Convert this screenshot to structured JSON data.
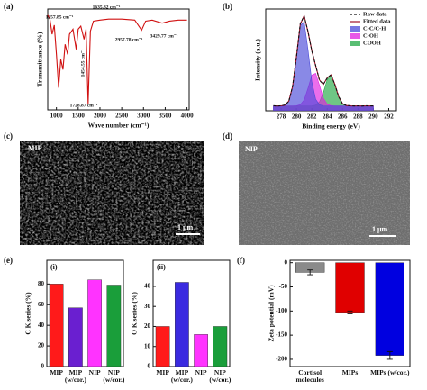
{
  "panel_labels": [
    "(a)",
    "(b)",
    "(c)",
    "(d)",
    "(e)",
    "(f)"
  ],
  "images": [
    {
      "label": "MIP",
      "scale": "1 μm"
    },
    {
      "label": "NIP",
      "scale": "1 μm"
    }
  ],
  "chart_data": [
    {
      "type": "line",
      "x_label": "Wave number (cm⁻¹)",
      "y_label": "Transmittance (%)",
      "x": [
        800,
        850,
        900,
        950,
        1000,
        1050,
        1100,
        1150,
        1200,
        1257,
        1300,
        1380,
        1454,
        1500,
        1560,
        1635,
        1680,
        1728,
        1780,
        1850,
        2000,
        2200,
        2500,
        2800,
        2957,
        3050,
        3200,
        3429,
        3600,
        3800,
        4000
      ],
      "series": [
        {
          "color": "#d01010",
          "values": [
            94,
            90,
            75,
            84,
            55,
            22,
            50,
            40,
            65,
            55,
            75,
            80,
            60,
            80,
            83,
            70,
            80,
            6,
            78,
            88,
            89,
            90,
            90,
            89,
            79,
            88,
            89,
            86,
            88,
            89,
            89
          ]
        }
      ],
      "xlim": [
        800,
        4050
      ],
      "xticks": [
        1000,
        1500,
        2000,
        2500,
        3000,
        3500,
        4000
      ],
      "ylim": [
        0,
        100
      ],
      "annotations": [
        "1257.85 cm⁻¹",
        "1635.82 cm⁻¹",
        "1454.55 cm⁻¹",
        "1728.87 cm⁻¹",
        "2957.78 cm⁻¹",
        "3429.77 cm⁻¹"
      ]
    },
    {
      "type": "line",
      "x_label": "Binding energy (eV)",
      "y_label": "Intensity (a.u.)",
      "x": [
        277,
        277.5,
        278,
        278.5,
        279,
        279.5,
        280,
        280.5,
        281,
        281.5,
        282,
        282.5,
        283,
        283.5,
        284,
        284.5,
        285,
        285.5,
        286,
        286.5,
        287,
        287.5,
        288,
        288.5,
        289,
        289.5,
        290
      ],
      "series": [
        {
          "name": "Raw data",
          "color": "#111111",
          "dashed": true,
          "values": [
            5.3,
            4.8,
            5.2,
            6.0,
            9.6,
            25.5,
            55.4,
            90.1,
            97.6,
            82.0,
            61.5,
            46.8,
            31.2,
            27.5,
            33.6,
            37.4,
            26.8,
            14.7,
            7.0,
            5.6,
            5.2,
            4.9,
            5.1,
            4.8,
            5.2,
            5.0,
            5.1
          ]
        },
        {
          "name": "Fitted data",
          "color": "#a0102a",
          "values": [
            5,
            5,
            5.1,
            5.8,
            10,
            25.1,
            56.1,
            89.4,
            98.1,
            81.4,
            62.0,
            46.3,
            31.7,
            27.1,
            34.0,
            37.0,
            27.2,
            14.3,
            7.3,
            5.4,
            5,
            5,
            5,
            5,
            5,
            5,
            5
          ]
        },
        {
          "name": "C-C/C-H",
          "color": "#4a4ad8",
          "filled": true,
          "values": [
            5,
            5,
            5.1,
            5.8,
            10,
            25.1,
            55.9,
            88.1,
            91.9,
            63.2,
            30,
            11.9,
            6.2,
            5.1,
            5,
            5,
            5,
            5,
            5,
            5,
            5,
            5,
            5,
            5,
            5,
            5,
            5
          ]
        },
        {
          "name": "C-OH",
          "color": "#e020e0",
          "filled": true,
          "values": [
            5,
            5,
            5,
            5,
            5,
            5,
            5.2,
            6.3,
            11.2,
            23.2,
            36.9,
            38.6,
            26.2,
            13,
            6.8,
            5.3,
            5,
            5,
            5,
            5,
            5,
            5,
            5,
            5,
            5,
            5,
            5
          ]
        },
        {
          "name": "COOH",
          "color": "#22a844",
          "filled": true,
          "values": [
            5,
            5,
            5,
            5,
            5,
            5,
            5,
            5,
            5,
            5,
            5.1,
            5.8,
            9.3,
            19,
            32.2,
            36.7,
            27.2,
            14.3,
            7.3,
            5.4,
            5,
            5,
            5,
            5,
            5,
            5,
            5
          ]
        }
      ],
      "xlim": [
        276,
        293
      ],
      "xticks": [
        278,
        280,
        282,
        284,
        286,
        288,
        290,
        292
      ],
      "ylim": [
        0,
        105
      ],
      "legend": "upper right"
    },
    {
      "type": "bar",
      "label": "(i)",
      "y_label": "C K series (%)",
      "categories": [
        "MIP",
        "MIP (w/cor.)",
        "NIP",
        "NIP (w/cor.)"
      ],
      "values": [
        80,
        57,
        84,
        79
      ],
      "colors": [
        "#ff1a1a",
        "#6a1fd0",
        "#ff33ff",
        "#1a9e3a"
      ],
      "ylim": [
        0,
        103
      ],
      "yticks": [
        0,
        20,
        40,
        60,
        80
      ]
    },
    {
      "type": "bar",
      "label": "(ii)",
      "y_label": "O K series (%)",
      "categories": [
        "MIP",
        "MIP (w/cor.)",
        "NIP",
        "NIP (w/cor.)"
      ],
      "values": [
        20,
        42,
        16,
        20
      ],
      "colors": [
        "#ff1a1a",
        "#3a2ae0",
        "#ff33ff",
        "#1a9e3a"
      ],
      "ylim": [
        0,
        53
      ],
      "yticks": [
        0,
        10,
        20,
        30,
        40
      ]
    },
    {
      "type": "bar",
      "y_label": "Zeta potential (mV)",
      "categories": [
        "Cortisol molecules",
        "MIPs",
        "MIPs (w/cor.)"
      ],
      "values": [
        -20,
        -103,
        -192
      ],
      "errors": [
        5,
        3,
        8
      ],
      "colors": [
        "#8a8a8a",
        "#e00000",
        "#0000e0"
      ],
      "ylim": [
        -215,
        5
      ],
      "yticks": [
        0,
        -50,
        -100,
        -150,
        -200
      ]
    }
  ]
}
